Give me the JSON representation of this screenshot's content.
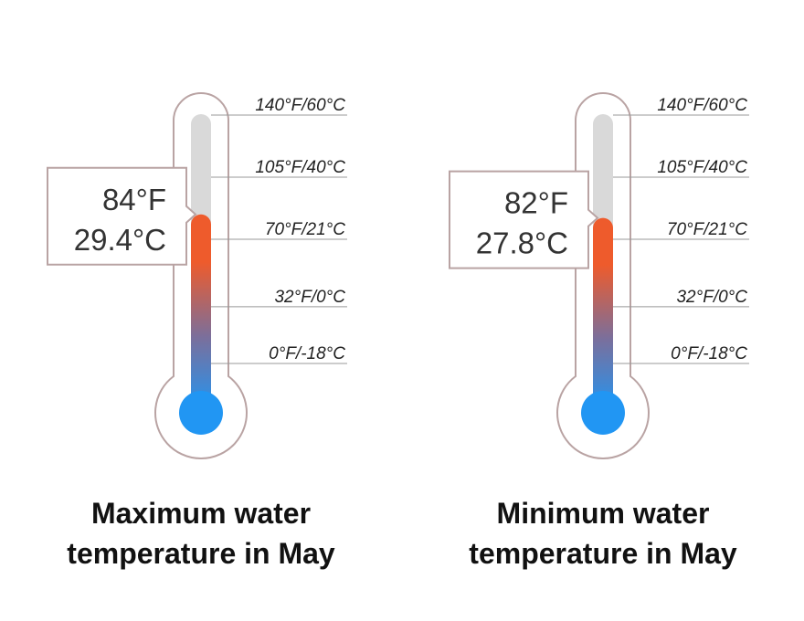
{
  "chart_data": [
    {
      "type": "thermometer",
      "title": [
        "Maximum water",
        "temperature in May"
      ],
      "value_f": 84,
      "value_c": 29.4,
      "value_label_f": "84°F",
      "value_label_c": "29.4°C",
      "ticks": [
        {
          "f": 140,
          "label": "140°F/60°C"
        },
        {
          "f": 105,
          "label": "105°F/40°C"
        },
        {
          "f": 70,
          "label": "70°F/21°C"
        },
        {
          "f": 32,
          "label": "32°F/0°C"
        },
        {
          "f": 0,
          "label": "0°F/-18°C"
        }
      ],
      "range_f": [
        0,
        140
      ]
    },
    {
      "type": "thermometer",
      "title": [
        "Minimum water",
        "temperature in May"
      ],
      "value_f": 82,
      "value_c": 27.8,
      "value_label_f": "82°F",
      "value_label_c": "27.8°C",
      "ticks": [
        {
          "f": 140,
          "label": "140°F/60°C"
        },
        {
          "f": 105,
          "label": "105°F/40°C"
        },
        {
          "f": 70,
          "label": "70°F/21°C"
        },
        {
          "f": 32,
          "label": "32°F/0°C"
        },
        {
          "f": 0,
          "label": "0°F/-18°C"
        }
      ],
      "range_f": [
        0,
        140
      ]
    }
  ],
  "colors": {
    "outline": "#b9a3a3",
    "tube_empty": "#d9d9d9",
    "hot": "#ee5b2c",
    "cold": "#2196f3",
    "tick_line": "#999999"
  }
}
